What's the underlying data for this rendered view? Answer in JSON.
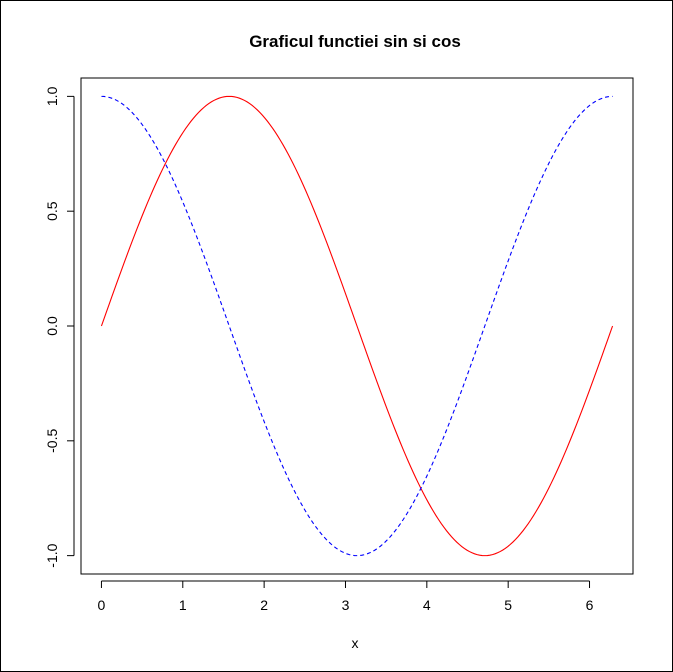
{
  "chart_data": {
    "type": "line",
    "title": "Graficul functiei sin si cos",
    "xlabel": "x",
    "ylabel": "",
    "xlim": [
      -0.2513,
      6.5345
    ],
    "ylim": [
      -1.08,
      1.08
    ],
    "x_ticks": [
      0,
      1,
      2,
      3,
      4,
      5,
      6
    ],
    "x_tick_labels": [
      "0",
      "1",
      "2",
      "3",
      "4",
      "5",
      "6"
    ],
    "y_ticks": [
      1.0,
      0.5,
      0.0,
      -0.5,
      -1.0
    ],
    "y_tick_labels": [
      "1.0",
      "0.5",
      "0.0",
      "-0.5",
      "-1.0"
    ],
    "grid": false,
    "legend": "none",
    "x_range": [
      0,
      6.2832
    ],
    "series": [
      {
        "function": "sin",
        "color": "#ff0000",
        "dash": "solid"
      },
      {
        "function": "cos",
        "color": "#0000ff",
        "dash": "dashed"
      }
    ]
  }
}
